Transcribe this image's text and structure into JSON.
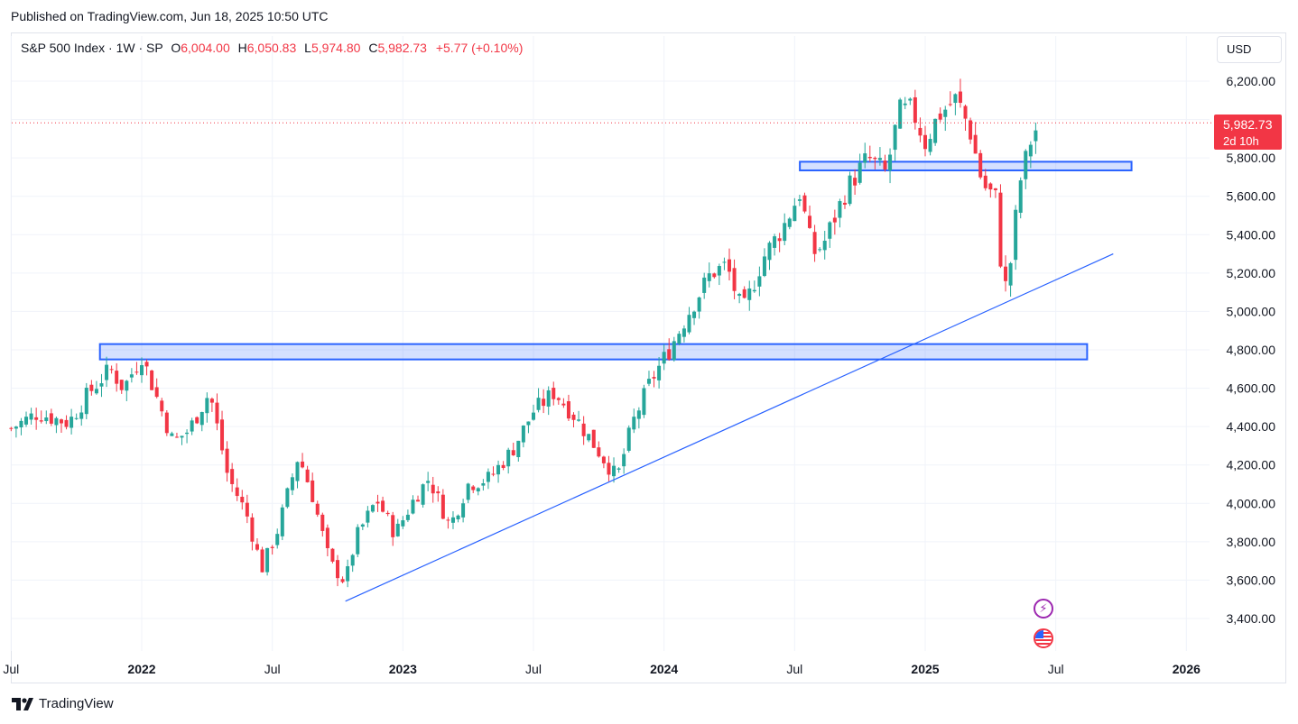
{
  "header": {
    "published_text": "Published on TradingView.com, Jun 18, 2025 10:50 UTC"
  },
  "legend": {
    "symbol": "S&P 500 Index · 1W · SP",
    "open_label": "O",
    "open": "6,004.00",
    "high_label": "H",
    "high": "6,050.83",
    "low_label": "L",
    "low": "5,974.80",
    "close_label": "C",
    "close": "5,982.73",
    "change": "+5.77 (+0.10%)"
  },
  "currency": "USD",
  "price_tag": {
    "price": "5,982.73",
    "countdown": "2d 10h"
  },
  "footer": {
    "brand": "TradingView"
  },
  "icons": {
    "events": "lightning-bolt-icon",
    "economic": "us-flag-icon"
  },
  "colors": {
    "up": "#26a69a",
    "down": "#f23645",
    "zone": "#2962ff",
    "grid": "#f0f3fa"
  },
  "chart_data": {
    "type": "candlestick",
    "interval": "1W",
    "y_ticks": [
      "6,200.00",
      "5,800.00",
      "5,600.00",
      "5,400.00",
      "5,200.00",
      "5,000.00",
      "4,800.00",
      "4,600.00",
      "4,400.00",
      "4,200.00",
      "4,000.00",
      "3,800.00",
      "3,600.00",
      "3,400.00"
    ],
    "y_tick_values": [
      6200,
      5800,
      5600,
      5400,
      5200,
      5000,
      4800,
      4600,
      4400,
      4200,
      4000,
      3800,
      3600,
      3400
    ],
    "ylim": [
      3300,
      6350
    ],
    "x_ticks": [
      {
        "label": "Jul",
        "t": 2021.5,
        "bold": false
      },
      {
        "label": "2022",
        "t": 2022.0,
        "bold": true
      },
      {
        "label": "Jul",
        "t": 2022.5,
        "bold": false
      },
      {
        "label": "2023",
        "t": 2023.0,
        "bold": true
      },
      {
        "label": "Jul",
        "t": 2023.5,
        "bold": false
      },
      {
        "label": "2024",
        "t": 2024.0,
        "bold": true
      },
      {
        "label": "Jul",
        "t": 2024.5,
        "bold": false
      },
      {
        "label": "2025",
        "t": 2025.0,
        "bold": true
      },
      {
        "label": "Jul",
        "t": 2025.5,
        "bold": false
      },
      {
        "label": "2026",
        "t": 2026.0,
        "bold": true
      }
    ],
    "xlim": [
      2021.49,
      2026.17
    ],
    "current_price": 5982.73,
    "zones": [
      {
        "t_start": 2021.84,
        "t_end": 2025.62,
        "low": 4750,
        "high": 4830
      },
      {
        "t_start": 2024.52,
        "t_end": 2025.79,
        "low": 5735,
        "high": 5780
      }
    ],
    "trendline": {
      "t1": 2022.78,
      "p1": 3490,
      "t2": 2025.72,
      "p2": 5300
    },
    "anchors": [
      {
        "t": 2021.5,
        "c": 4390
      },
      {
        "t": 2021.6,
        "c": 4470
      },
      {
        "t": 2021.72,
        "c": 4420
      },
      {
        "t": 2021.8,
        "c": 4580
      },
      {
        "t": 2021.88,
        "c": 4700
      },
      {
        "t": 2021.93,
        "c": 4600
      },
      {
        "t": 2022.0,
        "c": 4770
      },
      {
        "t": 2022.05,
        "c": 4580
      },
      {
        "t": 2022.12,
        "c": 4320
      },
      {
        "t": 2022.18,
        "c": 4380
      },
      {
        "t": 2022.26,
        "c": 4580
      },
      {
        "t": 2022.33,
        "c": 4140
      },
      {
        "t": 2022.4,
        "c": 3950
      },
      {
        "t": 2022.46,
        "c": 3660
      },
      {
        "t": 2022.52,
        "c": 3860
      },
      {
        "t": 2022.6,
        "c": 4250
      },
      {
        "t": 2022.65,
        "c": 4060
      },
      {
        "t": 2022.72,
        "c": 3690
      },
      {
        "t": 2022.78,
        "c": 3590
      },
      {
        "t": 2022.82,
        "c": 3820
      },
      {
        "t": 2022.9,
        "c": 4020
      },
      {
        "t": 2022.97,
        "c": 3840
      },
      {
        "t": 2023.05,
        "c": 4040
      },
      {
        "t": 2023.1,
        "c": 4130
      },
      {
        "t": 2023.18,
        "c": 3880
      },
      {
        "t": 2023.25,
        "c": 4100
      },
      {
        "t": 2023.33,
        "c": 4130
      },
      {
        "t": 2023.42,
        "c": 4280
      },
      {
        "t": 2023.5,
        "c": 4480
      },
      {
        "t": 2023.58,
        "c": 4580
      },
      {
        "t": 2023.66,
        "c": 4450
      },
      {
        "t": 2023.74,
        "c": 4290
      },
      {
        "t": 2023.82,
        "c": 4130
      },
      {
        "t": 2023.88,
        "c": 4420
      },
      {
        "t": 2023.95,
        "c": 4640
      },
      {
        "t": 2024.02,
        "c": 4800
      },
      {
        "t": 2024.1,
        "c": 5010
      },
      {
        "t": 2024.18,
        "c": 5200
      },
      {
        "t": 2024.24,
        "c": 5240
      },
      {
        "t": 2024.3,
        "c": 4990
      },
      {
        "t": 2024.38,
        "c": 5280
      },
      {
        "t": 2024.46,
        "c": 5450
      },
      {
        "t": 2024.52,
        "c": 5620
      },
      {
        "t": 2024.57,
        "c": 5300
      },
      {
        "t": 2024.61,
        "c": 5350
      },
      {
        "t": 2024.7,
        "c": 5640
      },
      {
        "t": 2024.78,
        "c": 5800
      },
      {
        "t": 2024.85,
        "c": 5720
      },
      {
        "t": 2024.9,
        "c": 6040
      },
      {
        "t": 2024.95,
        "c": 6050
      },
      {
        "t": 2025.0,
        "c": 5880
      },
      {
        "t": 2025.05,
        "c": 6020
      },
      {
        "t": 2025.12,
        "c": 6110
      },
      {
        "t": 2025.17,
        "c": 5950
      },
      {
        "t": 2025.22,
        "c": 5660
      },
      {
        "t": 2025.27,
        "c": 5590
      },
      {
        "t": 2025.3,
        "c": 5080
      },
      {
        "t": 2025.33,
        "c": 5280
      },
      {
        "t": 2025.36,
        "c": 5660
      },
      {
        "t": 2025.41,
        "c": 5920
      },
      {
        "t": 2025.44,
        "c": 5980
      }
    ]
  }
}
